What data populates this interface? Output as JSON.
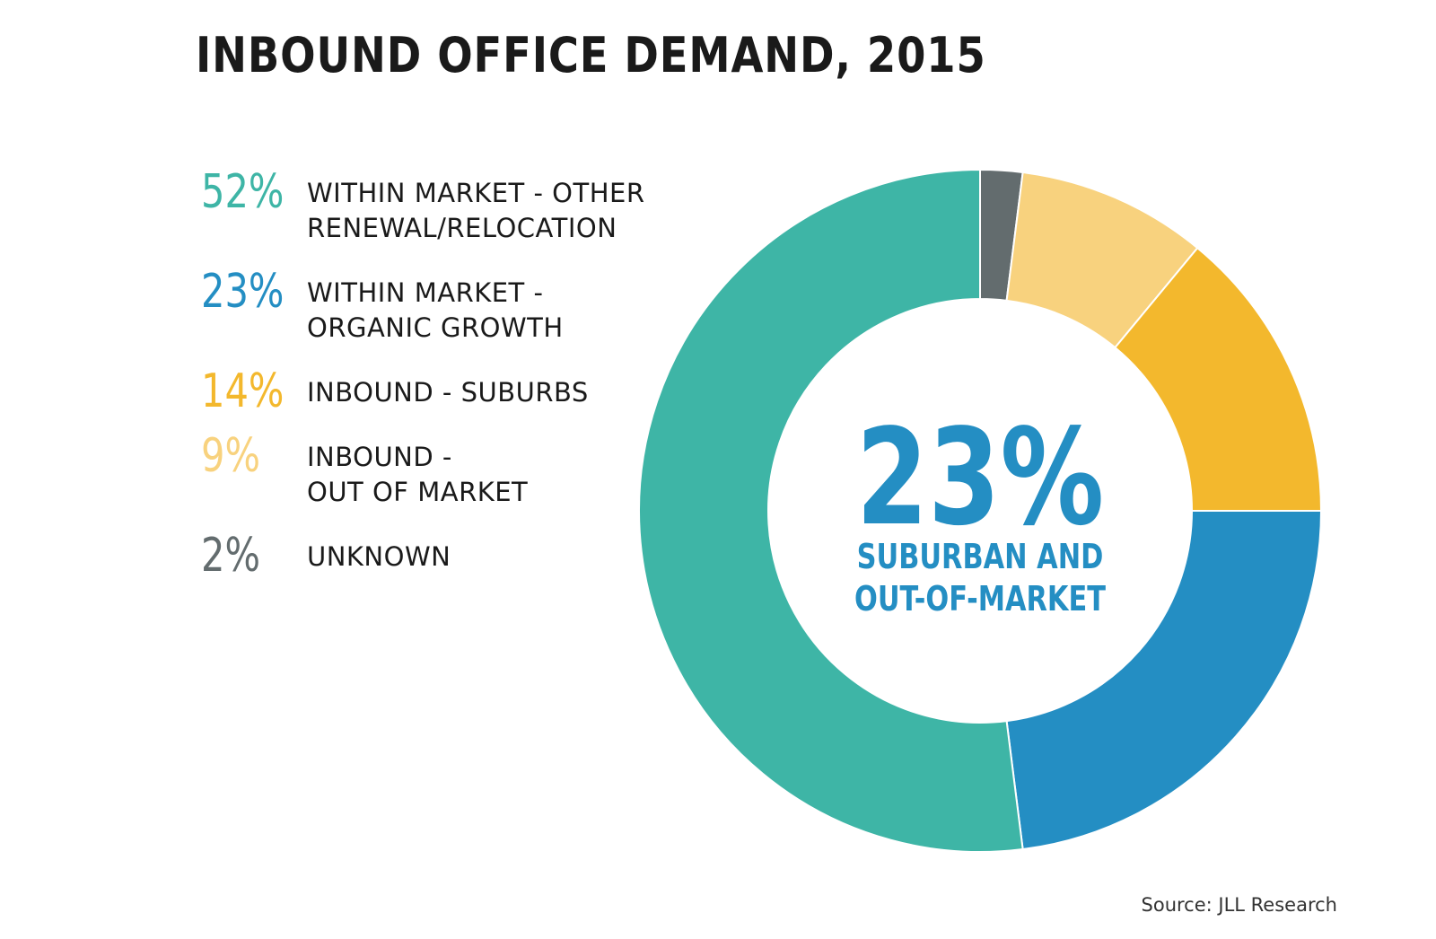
{
  "chart_data": {
    "type": "pie",
    "variant": "donut",
    "title": "INBOUND OFFICE DEMAND, 2015",
    "series": [
      {
        "name": "WITHIN MARKET - OTHER RENEWAL/RELOCATION",
        "label_lines": [
          "WITHIN MARKET - OTHER",
          "RENEWAL/RELOCATION"
        ],
        "value": 52,
        "pct_label": "52%",
        "color": "#3eb5a6"
      },
      {
        "name": "WITHIN MARKET - ORGANIC GROWTH",
        "label_lines": [
          "WITHIN MARKET -",
          "ORGANIC GROWTH"
        ],
        "value": 23,
        "pct_label": "23%",
        "color": "#248ec3"
      },
      {
        "name": "INBOUND - SUBURBS",
        "label_lines": [
          "INBOUND - SUBURBS"
        ],
        "value": 14,
        "pct_label": "14%",
        "color": "#f3b82d"
      },
      {
        "name": "INBOUND - OUT OF MARKET",
        "label_lines": [
          "INBOUND -",
          "OUT OF MARKET"
        ],
        "value": 9,
        "pct_label": "9%",
        "color": "#f8d27e"
      },
      {
        "name": "UNKNOWN",
        "label_lines": [
          "UNKNOWN"
        ],
        "value": 2,
        "pct_label": "2%",
        "color": "#636c6e"
      }
    ],
    "center_value": "23%",
    "center_label_lines": [
      "SUBURBAN AND",
      "OUT-OF-MARKET"
    ],
    "center_color": "#248ec3",
    "legend_position": "left"
  },
  "source": "Source: JLL Research"
}
